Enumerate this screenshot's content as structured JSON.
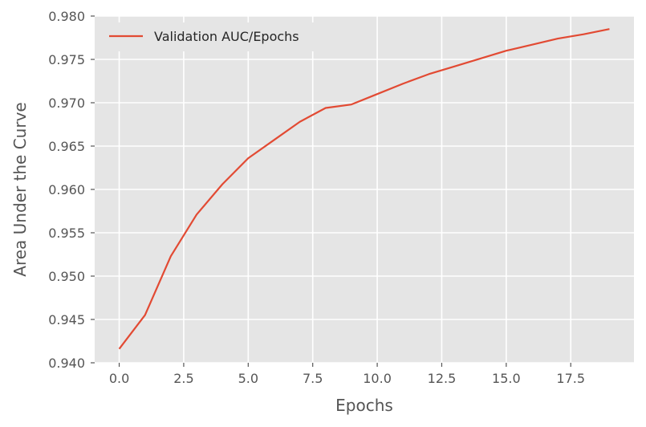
{
  "chart_data": {
    "type": "line",
    "title": "",
    "xlabel": "Epochs",
    "ylabel": "Area Under the Curve",
    "xlim": [
      -0.95,
      19.95
    ],
    "ylim": [
      0.94,
      0.98
    ],
    "grid": true,
    "legend_placement": "top-left",
    "x_ticks": [
      0.0,
      2.5,
      5.0,
      7.5,
      10.0,
      12.5,
      15.0,
      17.5
    ],
    "x_tick_labels": [
      "0.0",
      "2.5",
      "5.0",
      "7.5",
      "10.0",
      "12.5",
      "15.0",
      "17.5"
    ],
    "y_ticks": [
      0.94,
      0.945,
      0.95,
      0.955,
      0.96,
      0.965,
      0.97,
      0.975,
      0.98
    ],
    "y_tick_labels": [
      "0.940",
      "0.945",
      "0.950",
      "0.955",
      "0.960",
      "0.965",
      "0.970",
      "0.975",
      "0.980"
    ],
    "series": [
      {
        "name": "Validation AUC/Epochs",
        "color": "#e24a33",
        "x": [
          0,
          1,
          2,
          3,
          4,
          5,
          6,
          7,
          8,
          9,
          10,
          11,
          12,
          13,
          14,
          15,
          16,
          17,
          18,
          19
        ],
        "y": [
          0.9416,
          0.9455,
          0.9523,
          0.9571,
          0.9606,
          0.9636,
          0.9657,
          0.9678,
          0.9694,
          0.9698,
          0.971,
          0.9722,
          0.9733,
          0.9742,
          0.9751,
          0.976,
          0.9767,
          0.9774,
          0.9779,
          0.9785
        ]
      }
    ]
  },
  "style": {
    "plot_background": "#e5e5e5",
    "grid_color": "#ffffff",
    "text_color": "#555555"
  }
}
